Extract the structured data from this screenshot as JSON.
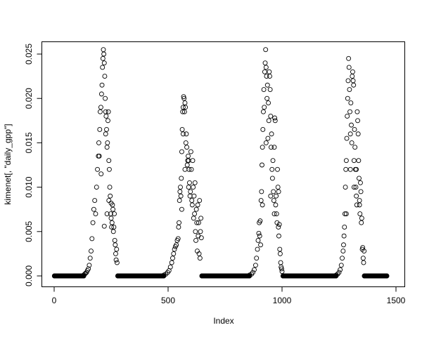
{
  "chart_data": {
    "type": "scatter",
    "title": "",
    "xlabel": "Index",
    "ylabel": "kimenet[, \"daily_gpp\"]",
    "xlim": [
      0,
      1500
    ],
    "ylim": [
      0,
      0.025
    ],
    "xticks": [
      0,
      500,
      1000,
      1500
    ],
    "xtick_labels": [
      "0",
      "500",
      "1000",
      "1500"
    ],
    "yticks": [
      0,
      0.005,
      0.01,
      0.015,
      0.02,
      0.025
    ],
    "ytick_labels": [
      "0.000",
      "0.005",
      "0.010",
      "0.015",
      "0.020",
      "0.025"
    ],
    "grid": false,
    "marker": "open-circle",
    "marker_color": "#000000",
    "zero_value_index_ranges": [
      [
        1,
        130
      ],
      [
        279,
        481
      ],
      [
        648,
        857
      ],
      [
        1004,
        1237
      ],
      [
        1361,
        1460
      ]
    ],
    "points": [
      [
        130,
        0.0001
      ],
      [
        134,
        0.0002
      ],
      [
        138,
        0.0003
      ],
      [
        142,
        0.0004
      ],
      [
        146,
        0.0006
      ],
      [
        150,
        0.0008
      ],
      [
        154,
        0.0012
      ],
      [
        158,
        0.002
      ],
      [
        162,
        0.0028
      ],
      [
        166,
        0.0042
      ],
      [
        170,
        0.006
      ],
      [
        174,
        0.0075
      ],
      [
        178,
        0.0085
      ],
      [
        182,
        0.007
      ],
      [
        186,
        0.01
      ],
      [
        190,
        0.012
      ],
      [
        194,
        0.0135
      ],
      [
        196,
        0.015
      ],
      [
        198,
        0.0135
      ],
      [
        200,
        0.0165
      ],
      [
        202,
        0.0185
      ],
      [
        205,
        0.019
      ],
      [
        206,
        0.0115
      ],
      [
        208,
        0.0205
      ],
      [
        210,
        0.0215
      ],
      [
        212,
        0.0235
      ],
      [
        214,
        0.0245
      ],
      [
        216,
        0.0255
      ],
      [
        218,
        0.025
      ],
      [
        220,
        0.024
      ],
      [
        220,
        0.0056
      ],
      [
        222,
        0.0225
      ],
      [
        224,
        0.02
      ],
      [
        226,
        0.0185
      ],
      [
        226,
        0.016
      ],
      [
        228,
        0.018
      ],
      [
        230,
        0.0165
      ],
      [
        232,
        0.0145
      ],
      [
        232,
        0.007
      ],
      [
        234,
        0.015
      ],
      [
        236,
        0.0175
      ],
      [
        238,
        0.0185
      ],
      [
        240,
        0.013
      ],
      [
        240,
        0.0085
      ],
      [
        242,
        0.012
      ],
      [
        244,
        0.01
      ],
      [
        246,
        0.009
      ],
      [
        248,
        0.007
      ],
      [
        250,
        0.0082
      ],
      [
        250,
        0.0065
      ],
      [
        252,
        0.0055
      ],
      [
        254,
        0.006
      ],
      [
        256,
        0.008
      ],
      [
        258,
        0.0075
      ],
      [
        260,
        0.005
      ],
      [
        262,
        0.0055
      ],
      [
        264,
        0.007
      ],
      [
        266,
        0.004
      ],
      [
        268,
        0.0035
      ],
      [
        270,
        0.0025
      ],
      [
        272,
        0.0018
      ],
      [
        274,
        0.003
      ],
      [
        276,
        0.0015
      ],
      [
        482,
        0.0001
      ],
      [
        490,
        0.0002
      ],
      [
        498,
        0.0004
      ],
      [
        504,
        0.0006
      ],
      [
        510,
        0.001
      ],
      [
        516,
        0.0015
      ],
      [
        520,
        0.002
      ],
      [
        524,
        0.0025
      ],
      [
        528,
        0.003
      ],
      [
        532,
        0.0033
      ],
      [
        536,
        0.0035
      ],
      [
        540,
        0.004
      ],
      [
        544,
        0.0042
      ],
      [
        546,
        0.0055
      ],
      [
        548,
        0.006
      ],
      [
        550,
        0.0085
      ],
      [
        552,
        0.0095
      ],
      [
        554,
        0.01
      ],
      [
        556,
        0.009
      ],
      [
        558,
        0.011
      ],
      [
        560,
        0.014
      ],
      [
        560,
        0.0075
      ],
      [
        562,
        0.0165
      ],
      [
        564,
        0.0185
      ],
      [
        566,
        0.019
      ],
      [
        566,
        0.016
      ],
      [
        568,
        0.0202
      ],
      [
        570,
        0.02
      ],
      [
        572,
        0.0185
      ],
      [
        574,
        0.0195
      ],
      [
        574,
        0.012
      ],
      [
        576,
        0.019
      ],
      [
        578,
        0.015
      ],
      [
        580,
        0.016
      ],
      [
        582,
        0.0145
      ],
      [
        584,
        0.0125
      ],
      [
        586,
        0.013
      ],
      [
        588,
        0.0135
      ],
      [
        590,
        0.01
      ],
      [
        590,
        0.013
      ],
      [
        592,
        0.012
      ],
      [
        594,
        0.0105
      ],
      [
        596,
        0.009
      ],
      [
        598,
        0.0095
      ],
      [
        600,
        0.014
      ],
      [
        602,
        0.012
      ],
      [
        604,
        0.0085
      ],
      [
        606,
        0.008
      ],
      [
        608,
        0.013
      ],
      [
        610,
        0.01
      ],
      [
        612,
        0.0065
      ],
      [
        614,
        0.009
      ],
      [
        616,
        0.007
      ],
      [
        618,
        0.0105
      ],
      [
        620,
        0.005
      ],
      [
        622,
        0.004
      ],
      [
        624,
        0.0075
      ],
      [
        626,
        0.006
      ],
      [
        628,
        0.0028
      ],
      [
        630,
        0.008
      ],
      [
        632,
        0.0045
      ],
      [
        634,
        0.006
      ],
      [
        636,
        0.0025
      ],
      [
        638,
        0.0085
      ],
      [
        640,
        0.002
      ],
      [
        642,
        0.005
      ],
      [
        644,
        0.0065
      ],
      [
        646,
        0.0043
      ],
      [
        858,
        0.0001
      ],
      [
        866,
        0.0002
      ],
      [
        872,
        0.0004
      ],
      [
        878,
        0.0007
      ],
      [
        884,
        0.0012
      ],
      [
        888,
        0.002
      ],
      [
        892,
        0.003
      ],
      [
        895,
        0.004
      ],
      [
        898,
        0.0048
      ],
      [
        900,
        0.006
      ],
      [
        902,
        0.0045
      ],
      [
        904,
        0.0062
      ],
      [
        906,
        0.0035
      ],
      [
        908,
        0.0085
      ],
      [
        910,
        0.0095
      ],
      [
        912,
        0.0125
      ],
      [
        914,
        0.0145
      ],
      [
        914,
        0.008
      ],
      [
        916,
        0.0165
      ],
      [
        918,
        0.0185
      ],
      [
        920,
        0.021
      ],
      [
        922,
        0.019
      ],
      [
        924,
        0.023
      ],
      [
        926,
        0.024
      ],
      [
        928,
        0.0255
      ],
      [
        930,
        0.0235
      ],
      [
        930,
        0.015
      ],
      [
        932,
        0.0225
      ],
      [
        934,
        0.02
      ],
      [
        936,
        0.0215
      ],
      [
        938,
        0.0155
      ],
      [
        940,
        0.0195
      ],
      [
        942,
        0.0175
      ],
      [
        944,
        0.023
      ],
      [
        946,
        0.0225
      ],
      [
        948,
        0.021
      ],
      [
        950,
        0.018
      ],
      [
        950,
        0.009
      ],
      [
        952,
        0.0145
      ],
      [
        954,
        0.016
      ],
      [
        956,
        0.012
      ],
      [
        958,
        0.011
      ],
      [
        960,
        0.013
      ],
      [
        962,
        0.0095
      ],
      [
        964,
        0.0085
      ],
      [
        966,
        0.0145
      ],
      [
        966,
        0.007
      ],
      [
        968,
        0.0178
      ],
      [
        970,
        0.0175
      ],
      [
        972,
        0.008
      ],
      [
        974,
        0.009
      ],
      [
        976,
        0.007
      ],
      [
        978,
        0.006
      ],
      [
        980,
        0.012
      ],
      [
        982,
        0.01
      ],
      [
        984,
        0.0055
      ],
      [
        985,
        0.0095
      ],
      [
        986,
        0.0045
      ],
      [
        988,
        0.0058
      ],
      [
        990,
        0.003
      ],
      [
        992,
        0.0025
      ],
      [
        994,
        0.0015
      ],
      [
        996,
        0.001
      ],
      [
        998,
        0.0008
      ],
      [
        1000,
        0.0005
      ],
      [
        1238,
        0.0001
      ],
      [
        1244,
        0.0002
      ],
      [
        1250,
        0.0004
      ],
      [
        1255,
        0.0007
      ],
      [
        1260,
        0.0012
      ],
      [
        1264,
        0.002
      ],
      [
        1268,
        0.0028
      ],
      [
        1270,
        0.0035
      ],
      [
        1272,
        0.0045
      ],
      [
        1274,
        0.0055
      ],
      [
        1276,
        0.007
      ],
      [
        1278,
        0.01
      ],
      [
        1280,
        0.012
      ],
      [
        1282,
        0.013
      ],
      [
        1282,
        0.007
      ],
      [
        1284,
        0.0155
      ],
      [
        1286,
        0.018
      ],
      [
        1288,
        0.02
      ],
      [
        1290,
        0.022
      ],
      [
        1292,
        0.0245
      ],
      [
        1294,
        0.0235
      ],
      [
        1296,
        0.021
      ],
      [
        1298,
        0.0185
      ],
      [
        1300,
        0.016
      ],
      [
        1300,
        0.012
      ],
      [
        1302,
        0.0195
      ],
      [
        1304,
        0.017
      ],
      [
        1306,
        0.015
      ],
      [
        1308,
        0.0225
      ],
      [
        1310,
        0.023
      ],
      [
        1312,
        0.022
      ],
      [
        1314,
        0.0215
      ],
      [
        1316,
        0.013
      ],
      [
        1316,
        0.01
      ],
      [
        1318,
        0.0165
      ],
      [
        1320,
        0.0145
      ],
      [
        1322,
        0.012
      ],
      [
        1324,
        0.01
      ],
      [
        1326,
        0.009
      ],
      [
        1326,
        0.012
      ],
      [
        1328,
        0.008
      ],
      [
        1330,
        0.0185
      ],
      [
        1332,
        0.0175
      ],
      [
        1334,
        0.016
      ],
      [
        1336,
        0.013
      ],
      [
        1338,
        0.011
      ],
      [
        1340,
        0.0085
      ],
      [
        1340,
        0.008
      ],
      [
        1342,
        0.007
      ],
      [
        1344,
        0.0105
      ],
      [
        1346,
        0.0095
      ],
      [
        1348,
        0.006
      ],
      [
        1350,
        0.0065
      ],
      [
        1352,
        0.003
      ],
      [
        1354,
        0.0032
      ],
      [
        1356,
        0.002
      ],
      [
        1358,
        0.0015
      ],
      [
        1360,
        0.0028
      ]
    ]
  }
}
